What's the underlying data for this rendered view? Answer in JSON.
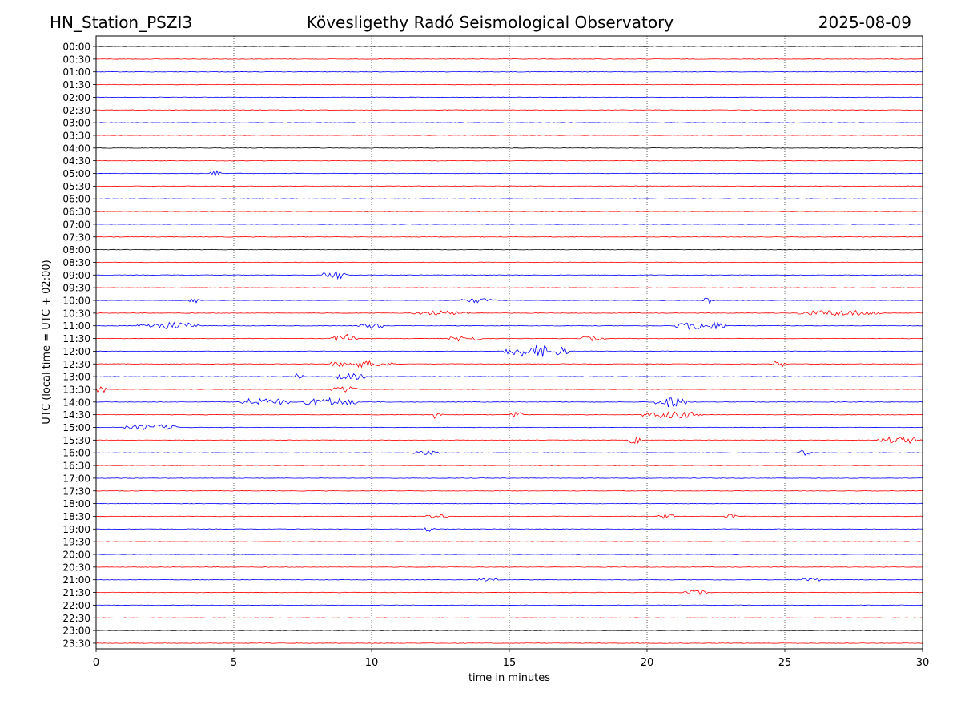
{
  "header": {
    "station": "HN_Station_PSZI3",
    "observatory": "Kövesligethy Radó Seismological Observatory",
    "date": "2025-08-09"
  },
  "chart_data": {
    "type": "line",
    "title": "Kövesligethy Radó Seismological Observatory",
    "xlabel": "time in minutes",
    "ylabel": "UTC (local time = UTC + 02:00)",
    "xlim": [
      0,
      30
    ],
    "x_ticks": [
      0,
      5,
      10,
      15,
      20,
      25,
      30
    ],
    "x_gridlines": [
      5,
      10,
      15,
      20,
      25
    ],
    "grid": "vertical dotted",
    "trace_colors": [
      "#000000",
      "#ff0000",
      "#0000ff"
    ],
    "rows": [
      {
        "label": "00:00",
        "color": "#000000"
      },
      {
        "label": "00:30",
        "color": "#ff0000"
      },
      {
        "label": "01:00",
        "color": "#0000ff"
      },
      {
        "label": "01:30",
        "color": "#ff0000"
      },
      {
        "label": "02:00",
        "color": "#0000ff"
      },
      {
        "label": "02:30",
        "color": "#ff0000"
      },
      {
        "label": "03:00",
        "color": "#0000ff"
      },
      {
        "label": "03:30",
        "color": "#ff0000"
      },
      {
        "label": "04:00",
        "color": "#000000"
      },
      {
        "label": "04:30",
        "color": "#ff0000"
      },
      {
        "label": "05:00",
        "color": "#0000ff"
      },
      {
        "label": "05:30",
        "color": "#ff0000"
      },
      {
        "label": "06:00",
        "color": "#0000ff"
      },
      {
        "label": "06:30",
        "color": "#ff0000"
      },
      {
        "label": "07:00",
        "color": "#0000ff"
      },
      {
        "label": "07:30",
        "color": "#ff0000"
      },
      {
        "label": "08:00",
        "color": "#000000"
      },
      {
        "label": "08:30",
        "color": "#ff0000"
      },
      {
        "label": "09:00",
        "color": "#0000ff"
      },
      {
        "label": "09:30",
        "color": "#ff0000"
      },
      {
        "label": "10:00",
        "color": "#0000ff"
      },
      {
        "label": "10:30",
        "color": "#ff0000"
      },
      {
        "label": "11:00",
        "color": "#0000ff"
      },
      {
        "label": "11:30",
        "color": "#ff0000"
      },
      {
        "label": "12:00",
        "color": "#0000ff"
      },
      {
        "label": "12:30",
        "color": "#ff0000"
      },
      {
        "label": "13:00",
        "color": "#0000ff"
      },
      {
        "label": "13:30",
        "color": "#ff0000"
      },
      {
        "label": "14:00",
        "color": "#0000ff"
      },
      {
        "label": "14:30",
        "color": "#ff0000"
      },
      {
        "label": "15:00",
        "color": "#0000ff"
      },
      {
        "label": "15:30",
        "color": "#ff0000"
      },
      {
        "label": "16:00",
        "color": "#0000ff"
      },
      {
        "label": "16:30",
        "color": "#ff0000"
      },
      {
        "label": "17:00",
        "color": "#0000ff"
      },
      {
        "label": "17:30",
        "color": "#ff0000"
      },
      {
        "label": "18:00",
        "color": "#0000ff"
      },
      {
        "label": "18:30",
        "color": "#ff0000"
      },
      {
        "label": "19:00",
        "color": "#0000ff"
      },
      {
        "label": "19:30",
        "color": "#ff0000"
      },
      {
        "label": "20:00",
        "color": "#0000ff"
      },
      {
        "label": "20:30",
        "color": "#ff0000"
      },
      {
        "label": "21:00",
        "color": "#0000ff"
      },
      {
        "label": "21:30",
        "color": "#ff0000"
      },
      {
        "label": "22:00",
        "color": "#0000ff"
      },
      {
        "label": "22:30",
        "color": "#ff0000"
      },
      {
        "label": "23:00",
        "color": "#000000"
      },
      {
        "label": "23:30",
        "color": "#ff0000"
      }
    ],
    "events": [
      {
        "row": "05:00",
        "start": 4.1,
        "end": 4.5,
        "amp": 0.25
      },
      {
        "row": "09:00",
        "start": 8.2,
        "end": 9.2,
        "amp": 0.35
      },
      {
        "row": "10:00",
        "start": 3.4,
        "end": 3.8,
        "amp": 0.25
      },
      {
        "row": "10:00",
        "start": 13.2,
        "end": 14.5,
        "amp": 0.2
      },
      {
        "row": "10:00",
        "start": 22.0,
        "end": 22.4,
        "amp": 0.3
      },
      {
        "row": "10:30",
        "start": 11.5,
        "end": 13.5,
        "amp": 0.2
      },
      {
        "row": "10:30",
        "start": 25.5,
        "end": 28.5,
        "amp": 0.25
      },
      {
        "row": "11:00",
        "start": 1.5,
        "end": 3.8,
        "amp": 0.3
      },
      {
        "row": "11:00",
        "start": 9.5,
        "end": 10.5,
        "amp": 0.25
      },
      {
        "row": "11:00",
        "start": 21.0,
        "end": 23.0,
        "amp": 0.35
      },
      {
        "row": "11:30",
        "start": 8.5,
        "end": 9.5,
        "amp": 0.35
      },
      {
        "row": "11:30",
        "start": 12.8,
        "end": 14.0,
        "amp": 0.25
      },
      {
        "row": "11:30",
        "start": 17.5,
        "end": 18.5,
        "amp": 0.2
      },
      {
        "row": "12:00",
        "start": 14.8,
        "end": 17.2,
        "amp": 0.5
      },
      {
        "row": "12:30",
        "start": 8.5,
        "end": 10.8,
        "amp": 0.3
      },
      {
        "row": "12:30",
        "start": 24.5,
        "end": 25.0,
        "amp": 0.3
      },
      {
        "row": "13:00",
        "start": 7.2,
        "end": 7.5,
        "amp": 0.3
      },
      {
        "row": "13:00",
        "start": 8.6,
        "end": 9.8,
        "amp": 0.25
      },
      {
        "row": "13:30",
        "start": 0.0,
        "end": 0.4,
        "amp": 0.3
      },
      {
        "row": "13:30",
        "start": 8.5,
        "end": 9.5,
        "amp": 0.3
      },
      {
        "row": "14:00",
        "start": 5.1,
        "end": 7.0,
        "amp": 0.35
      },
      {
        "row": "14:00",
        "start": 7.5,
        "end": 9.5,
        "amp": 0.35
      },
      {
        "row": "14:00",
        "start": 20.3,
        "end": 21.5,
        "amp": 0.45
      },
      {
        "row": "14:30",
        "start": 12.2,
        "end": 12.6,
        "amp": 0.4
      },
      {
        "row": "14:30",
        "start": 15.0,
        "end": 15.5,
        "amp": 0.3
      },
      {
        "row": "14:30",
        "start": 19.8,
        "end": 22.0,
        "amp": 0.3
      },
      {
        "row": "15:00",
        "start": 1.0,
        "end": 3.0,
        "amp": 0.25
      },
      {
        "row": "15:30",
        "start": 19.3,
        "end": 19.8,
        "amp": 0.3
      },
      {
        "row": "15:30",
        "start": 28.3,
        "end": 30.0,
        "amp": 0.3
      },
      {
        "row": "16:00",
        "start": 11.5,
        "end": 12.5,
        "amp": 0.2
      },
      {
        "row": "16:00",
        "start": 25.5,
        "end": 26.0,
        "amp": 0.25
      },
      {
        "row": "18:30",
        "start": 12.0,
        "end": 12.8,
        "amp": 0.2
      },
      {
        "row": "18:30",
        "start": 20.4,
        "end": 21.0,
        "amp": 0.2
      },
      {
        "row": "18:30",
        "start": 22.8,
        "end": 23.3,
        "amp": 0.2
      },
      {
        "row": "19:00",
        "start": 11.8,
        "end": 12.3,
        "amp": 0.25
      },
      {
        "row": "21:00",
        "start": 13.8,
        "end": 14.6,
        "amp": 0.2
      },
      {
        "row": "21:00",
        "start": 25.5,
        "end": 26.3,
        "amp": 0.2
      },
      {
        "row": "21:30",
        "start": 21.3,
        "end": 22.2,
        "amp": 0.2
      }
    ]
  }
}
